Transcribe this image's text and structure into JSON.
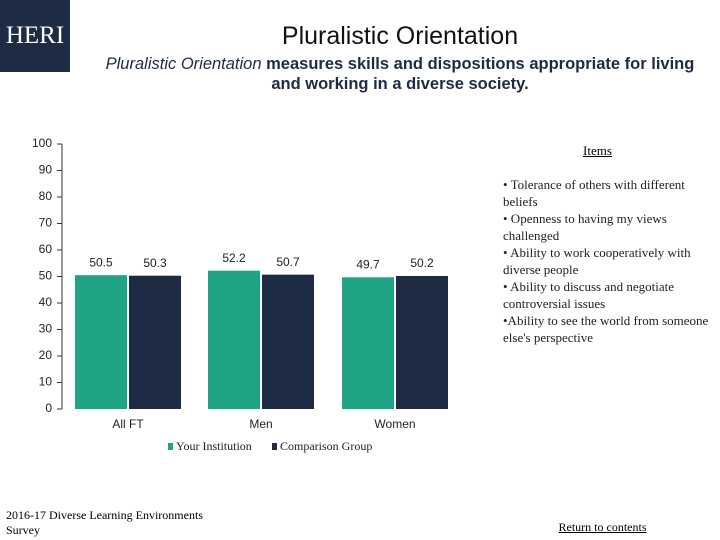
{
  "logo": "HERI",
  "chart_data": {
    "type": "bar",
    "title": "Pluralistic Orientation",
    "subtitle_emphasis": "Pluralistic Orientation",
    "subtitle": "measures skills and dispositions appropriate for living and working in a diverse society.",
    "categories": [
      "All FT",
      "Men",
      "Women"
    ],
    "series": [
      {
        "name": "Your Institution",
        "color": "#1fa586",
        "values": [
          50.5,
          52.2,
          49.7
        ]
      },
      {
        "name": "Comparison Group",
        "color": "#1e2b45",
        "values": [
          50.3,
          50.7,
          50.2
        ]
      }
    ],
    "ylim": [
      0,
      100
    ],
    "yticks": [
      0,
      10,
      20,
      30,
      40,
      50,
      60,
      70,
      80,
      90,
      100
    ],
    "grid": false
  },
  "items": {
    "title": "Items",
    "list": [
      "• Tolerance of others with different beliefs",
      "• Openness to having my views challenged",
      "• Ability to work cooperatively with diverse people",
      "• Ability to discuss and negotiate controversial issues",
      "•Ability to see the world from someone else's perspective"
    ]
  },
  "footer": "2016-17 Diverse Learning Environments Survey",
  "link": "Return to contents"
}
